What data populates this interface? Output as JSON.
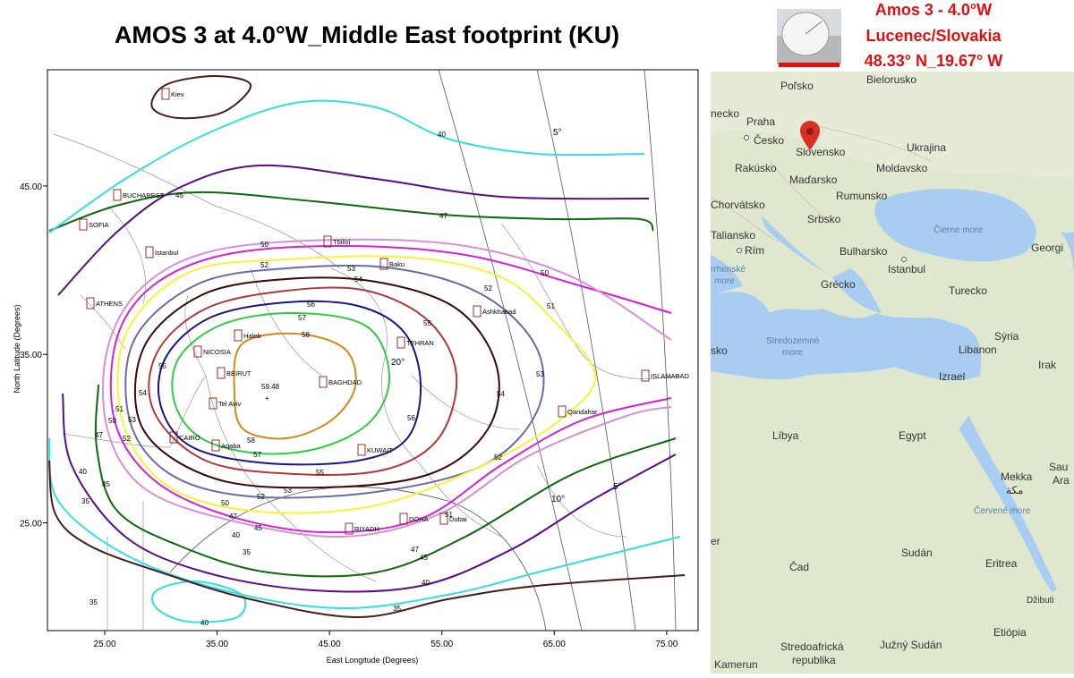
{
  "header": {
    "title": "AMOS 3 at 4.0°W_Middle East footprint (KU)",
    "station_lines": [
      "Amos 3 - 4.0°W",
      "Lucenec/Slovakia",
      "48.33° N_19.67° W"
    ]
  },
  "footprint": {
    "x_label": "East Longitude (Degrees)",
    "y_label": "North Latitude (Degrees)",
    "xlim": [
      19.9,
      77.8
    ],
    "ylim": [
      18.6,
      51.9
    ],
    "xticks": [
      {
        "value": 25,
        "label": "25.00"
      },
      {
        "value": 35,
        "label": "35.00"
      },
      {
        "value": 45,
        "label": "45.00"
      },
      {
        "value": 55,
        "label": "55.00"
      },
      {
        "value": 65,
        "label": "65.00"
      },
      {
        "value": 75,
        "label": "75.00"
      }
    ],
    "yticks": [
      {
        "value": 25,
        "label": "25.00"
      },
      {
        "value": 35,
        "label": "35.00"
      },
      {
        "value": 45,
        "label": "45.00"
      }
    ],
    "peak_label": "59.48",
    "contours": [
      {
        "level": 58,
        "color": "#d4881c"
      },
      {
        "level": 57,
        "color": "#2ecc40"
      },
      {
        "level": 56,
        "color": "#14148c"
      },
      {
        "level": 55,
        "color": "#b03838"
      },
      {
        "level": 54,
        "color": "#3a0808"
      },
      {
        "level": 53,
        "color": "#6a6aaa"
      },
      {
        "level": 52,
        "color": "#f5f532"
      },
      {
        "level": 51,
        "color": "#d81ed8"
      },
      {
        "level": 50,
        "color": "#d88ed8"
      },
      {
        "level": 47,
        "color": "#0a6a0a"
      },
      {
        "level": 45,
        "color": "#5a0a8a"
      },
      {
        "level": 40,
        "color": "#30e0e0"
      },
      {
        "level": 35,
        "color": "#4a1a1a"
      }
    ],
    "elevation_labels": [
      "5°",
      "20°",
      "10°",
      "5°"
    ],
    "cities": [
      "Kiev",
      "BUCHAREST",
      "SOFIA",
      "Istanbul",
      "Tbilisi",
      "Baku",
      "ATHENS",
      "Ashkhabad",
      "Haleb",
      "TEHRAN",
      "NICOSIA",
      "BEIRUT",
      "BAGHDAD",
      "ISLAMABAD",
      "Tel Aviv",
      "Qandahar",
      "CAIRO",
      "Aqaba",
      "KUWAIT",
      "DOHA",
      "Dubai",
      "RIYADH"
    ]
  },
  "map": {
    "labels": [
      "Poľsko",
      "Bielorusko",
      "necko",
      "Praha",
      "Česko",
      "Slovensko",
      "Ukrajina",
      "Rakúsko",
      "Moldavsko",
      "Maďarsko",
      "Rumunsko",
      "Chorvátsko",
      "Srbsko",
      "Čierne more",
      "Taliansko",
      "Rím",
      "Bulharsko",
      "Georgi",
      "rrhenské",
      "more",
      "Istanbul",
      "Grécko",
      "Turecko",
      "Stredozemné",
      "more",
      "sko",
      "Sýria",
      "Libanon",
      "Irak",
      "Izrael",
      "Líbya",
      "Egypt",
      "Sau",
      "Ara",
      "Mekka",
      "مكة",
      "Červené more",
      "er",
      "Sudán",
      "Čad",
      "Eritrea",
      "Džibuti",
      "Etiópia",
      "Stredoafrická",
      "republika",
      "Južný Sudán",
      "Kamerun"
    ]
  }
}
